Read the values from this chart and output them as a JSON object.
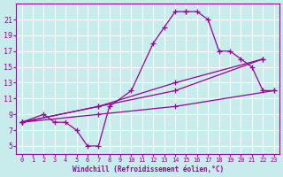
{
  "xlabel": "Windchill (Refroidissement éolien,°C)",
  "ylabel": "",
  "bg_color": "#c8ecec",
  "line_color": "#990099",
  "grid_color": "#ffffff",
  "xlim": [
    -0.5,
    23.5
  ],
  "ylim": [
    4,
    23
  ],
  "xticks": [
    0,
    1,
    2,
    3,
    4,
    5,
    6,
    7,
    8,
    9,
    10,
    11,
    12,
    13,
    14,
    15,
    16,
    17,
    18,
    19,
    20,
    21,
    22,
    23
  ],
  "yticks": [
    5,
    7,
    9,
    11,
    13,
    15,
    17,
    19,
    21
  ],
  "lines": [
    {
      "x": [
        0,
        2,
        3,
        4,
        5,
        6,
        7,
        8,
        10,
        12,
        13,
        14,
        15,
        15,
        16,
        17,
        18,
        19,
        20,
        21,
        22,
        23
      ],
      "y": [
        8,
        9,
        8,
        8,
        7,
        5,
        5,
        10,
        12,
        18,
        20,
        22,
        22,
        22,
        22,
        21,
        17,
        17,
        16,
        15,
        12,
        12
      ]
    },
    {
      "x": [
        0,
        7,
        14,
        23
      ],
      "y": [
        8,
        9,
        10,
        12
      ]
    },
    {
      "x": [
        0,
        7,
        14,
        22
      ],
      "y": [
        8,
        10,
        13,
        16
      ]
    },
    {
      "x": [
        0,
        7,
        14,
        22
      ],
      "y": [
        8,
        10,
        12,
        16
      ]
    }
  ],
  "marker": "+",
  "markersize": 4,
  "linewidth": 0.9
}
